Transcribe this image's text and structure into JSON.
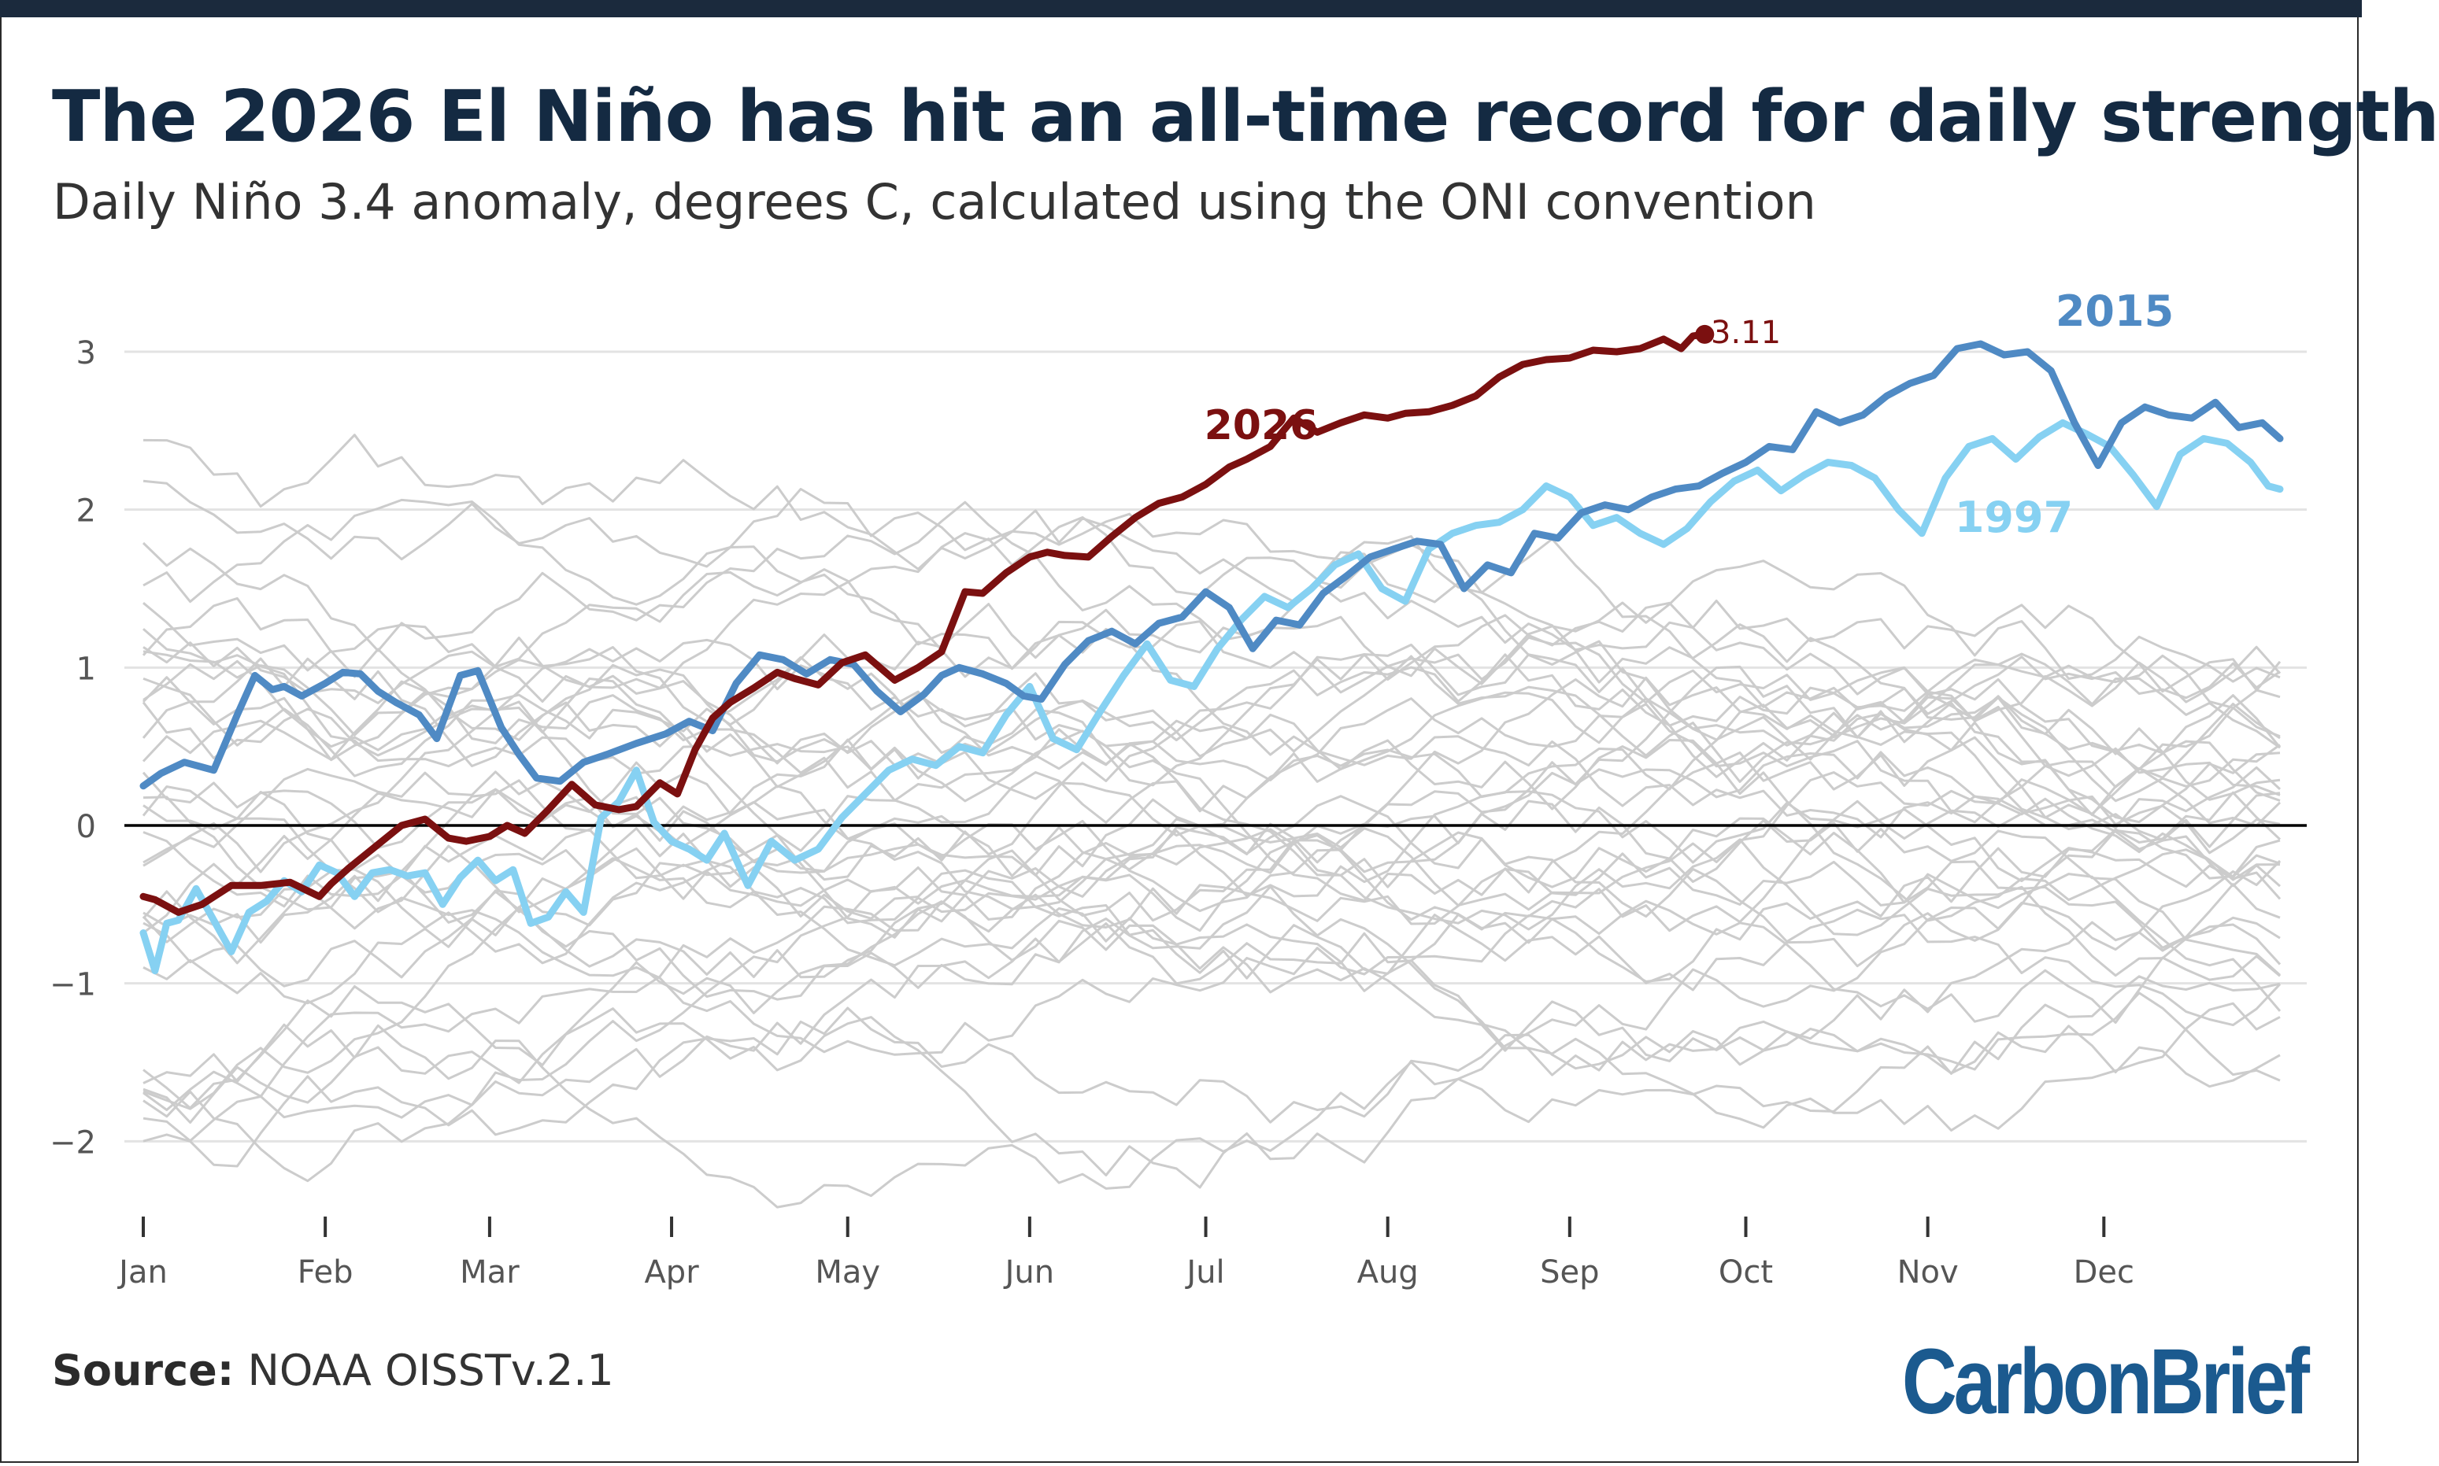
{
  "title": "The 2026 El Niño has hit an all-time record for daily strength",
  "subtitle": "Daily Niño 3.4 anomaly, degrees C, calculated using the ONI convention",
  "source_label": "Source:",
  "source_text": "NOAA OISSTv.2.1",
  "logo_text": "CarbonBrief",
  "colors": {
    "y2026": "#7b1010",
    "y2015": "#4f8ac4",
    "y1997": "#86d1f2",
    "background_years": "#cccccc",
    "zero_line": "#000000",
    "grid": "#e3e3e3",
    "title": "#142a42",
    "logo": "#1b5a8f"
  },
  "chart_data": {
    "type": "line",
    "x_axis": {
      "unit": "day of year",
      "range": [
        1,
        365
      ],
      "tick_labels": [
        "Jan",
        "Feb",
        "Mar",
        "Apr",
        "May",
        "Jun",
        "Jul",
        "Aug",
        "Sep",
        "Oct",
        "Nov",
        "Dec"
      ],
      "tick_days": [
        1,
        32,
        60,
        91,
        121,
        152,
        182,
        213,
        244,
        274,
        305,
        335
      ]
    },
    "y_axis": {
      "range": [
        -2.5,
        3.3
      ],
      "ticks": [
        3,
        2,
        1,
        0,
        -1,
        -2
      ],
      "tick_labels": [
        "3",
        "2",
        "1",
        "0",
        "−1",
        "−2"
      ],
      "grid": true
    },
    "highlight_labels": [
      "2026",
      "2015",
      "1997"
    ],
    "end_label": "3.11",
    "series": [
      {
        "name": "2026",
        "x": [
          1,
          3,
          7,
          11,
          16,
          21,
          26,
          31,
          33,
          36,
          41,
          45,
          49,
          53,
          56,
          60,
          63,
          66,
          70,
          74,
          78,
          82,
          85,
          89,
          92,
          95,
          98,
          101,
          105,
          109,
          112,
          116,
          120,
          124,
          129,
          133,
          137,
          141,
          144,
          148,
          152,
          155,
          158,
          162,
          166,
          170,
          174,
          178,
          182,
          186,
          189,
          193,
          197,
          201,
          205,
          209,
          213,
          216,
          220,
          224,
          228,
          232,
          236,
          240,
          244,
          248,
          252,
          256,
          260,
          263,
          265,
          267
        ],
        "y": [
          -0.45,
          -0.47,
          -0.55,
          -0.5,
          -0.38,
          -0.38,
          -0.36,
          -0.45,
          -0.37,
          -0.27,
          -0.12,
          0.0,
          0.04,
          -0.08,
          -0.1,
          -0.07,
          0.0,
          -0.05,
          0.1,
          0.26,
          0.13,
          0.1,
          0.12,
          0.27,
          0.2,
          0.48,
          0.68,
          0.78,
          0.87,
          0.97,
          0.93,
          0.89,
          1.03,
          1.08,
          0.92,
          1.0,
          1.1,
          1.48,
          1.47,
          1.6,
          1.7,
          1.73,
          1.71,
          1.7,
          1.83,
          1.95,
          2.04,
          2.08,
          2.16,
          2.27,
          2.32,
          2.4,
          2.58,
          2.49,
          2.55,
          2.6,
          2.58,
          2.61,
          2.62,
          2.66,
          2.72,
          2.84,
          2.92,
          2.95,
          2.96,
          3.01,
          3.0,
          3.02,
          3.08,
          3.02,
          3.1,
          3.11
        ]
      },
      {
        "name": "2015",
        "x": [
          1,
          4,
          8,
          13,
          17,
          20,
          23,
          25,
          28,
          32,
          35,
          38,
          41,
          44,
          48,
          51,
          55,
          58,
          62,
          65,
          68,
          72,
          76,
          80,
          85,
          90,
          94,
          98,
          102,
          106,
          110,
          114,
          118,
          122,
          126,
          130,
          134,
          137,
          140,
          144,
          148,
          151,
          154,
          158,
          162,
          166,
          170,
          174,
          178,
          182,
          186,
          190,
          194,
          198,
          202,
          206,
          210,
          214,
          218,
          222,
          226,
          230,
          234,
          238,
          242,
          246,
          250,
          254,
          258,
          262,
          266,
          270,
          274,
          278,
          282,
          286,
          290,
          294,
          298,
          302,
          306,
          310,
          314,
          318,
          322,
          326,
          330,
          334,
          338,
          342,
          346,
          350,
          354,
          358,
          362,
          365
        ],
        "y": [
          0.25,
          0.33,
          0.4,
          0.35,
          0.7,
          0.95,
          0.86,
          0.88,
          0.82,
          0.9,
          0.97,
          0.96,
          0.85,
          0.78,
          0.7,
          0.55,
          0.95,
          0.98,
          0.62,
          0.45,
          0.3,
          0.28,
          0.4,
          0.45,
          0.52,
          0.58,
          0.66,
          0.6,
          0.9,
          1.08,
          1.05,
          0.96,
          1.05,
          1.02,
          0.85,
          0.72,
          0.83,
          0.95,
          1.0,
          0.96,
          0.9,
          0.82,
          0.8,
          1.02,
          1.17,
          1.23,
          1.15,
          1.28,
          1.32,
          1.48,
          1.38,
          1.12,
          1.3,
          1.27,
          1.47,
          1.58,
          1.7,
          1.75,
          1.8,
          1.78,
          1.5,
          1.65,
          1.6,
          1.85,
          1.82,
          1.98,
          2.03,
          2.0,
          2.08,
          2.13,
          2.15,
          2.23,
          2.3,
          2.4,
          2.38,
          2.62,
          2.55,
          2.6,
          2.72,
          2.8,
          2.85,
          3.02,
          3.05,
          2.98,
          3.0,
          2.88,
          2.55,
          2.28,
          2.55,
          2.65,
          2.6,
          2.58,
          2.68,
          2.52,
          2.55,
          2.45
        ]
      },
      {
        "name": "1997",
        "x": [
          1,
          3,
          5,
          7,
          10,
          13,
          16,
          19,
          22,
          25,
          28,
          31,
          34,
          37,
          40,
          43,
          46,
          49,
          52,
          55,
          58,
          61,
          64,
          67,
          70,
          73,
          76,
          79,
          82,
          85,
          88,
          91,
          94,
          97,
          100,
          104,
          108,
          112,
          116,
          120,
          124,
          128,
          132,
          136,
          140,
          144,
          148,
          152,
          156,
          160,
          164,
          168,
          172,
          176,
          180,
          184,
          188,
          192,
          196,
          200,
          204,
          208,
          212,
          216,
          220,
          224,
          228,
          232,
          236,
          240,
          244,
          248,
          252,
          256,
          260,
          264,
          268,
          272,
          276,
          280,
          284,
          288,
          292,
          296,
          300,
          304,
          308,
          312,
          316,
          320,
          324,
          328,
          332,
          336,
          340,
          344,
          348,
          352,
          356,
          360,
          363,
          365
        ],
        "y": [
          -0.68,
          -0.92,
          -0.62,
          -0.6,
          -0.4,
          -0.6,
          -0.8,
          -0.55,
          -0.48,
          -0.35,
          -0.42,
          -0.25,
          -0.3,
          -0.45,
          -0.3,
          -0.28,
          -0.32,
          -0.3,
          -0.5,
          -0.33,
          -0.22,
          -0.35,
          -0.28,
          -0.62,
          -0.58,
          -0.42,
          -0.55,
          0.05,
          0.15,
          0.35,
          0.02,
          -0.1,
          -0.15,
          -0.22,
          -0.05,
          -0.38,
          -0.1,
          -0.22,
          -0.15,
          0.05,
          0.2,
          0.35,
          0.42,
          0.38,
          0.5,
          0.46,
          0.7,
          0.88,
          0.55,
          0.48,
          0.72,
          0.95,
          1.15,
          0.92,
          0.88,
          1.12,
          1.3,
          1.45,
          1.38,
          1.5,
          1.65,
          1.72,
          1.5,
          1.42,
          1.75,
          1.85,
          1.9,
          1.92,
          2.0,
          2.15,
          2.08,
          1.9,
          1.95,
          1.85,
          1.78,
          1.88,
          2.05,
          2.18,
          2.25,
          2.12,
          2.22,
          2.3,
          2.28,
          2.2,
          2.0,
          1.85,
          2.2,
          2.4,
          2.45,
          2.32,
          2.46,
          2.55,
          2.48,
          2.4,
          2.22,
          2.02,
          2.35,
          2.45,
          2.42,
          2.3,
          2.15,
          2.13
        ]
      }
    ]
  }
}
